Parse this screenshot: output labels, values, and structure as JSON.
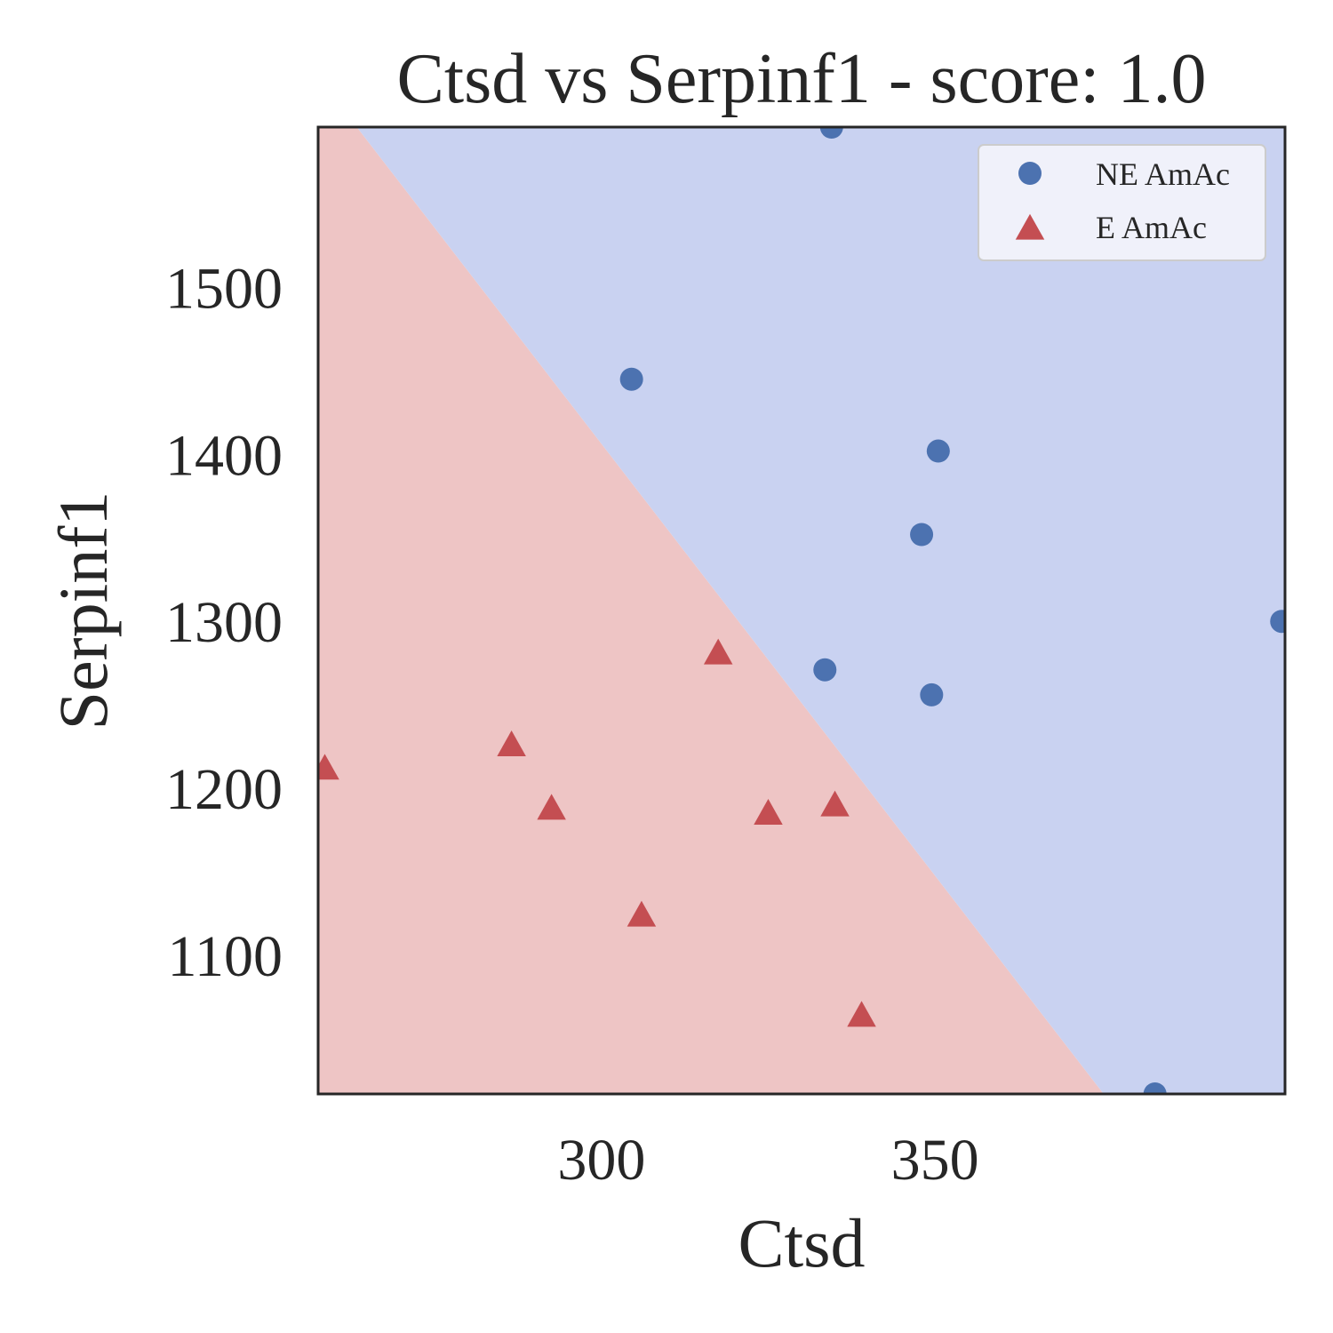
{
  "chart_data": {
    "type": "scatter",
    "title": "Ctsd vs Serpinf1 - score: 1.0",
    "xlabel": "Ctsd",
    "ylabel": "Serpinf1",
    "xlim": [
      257.5,
      402.5
    ],
    "ylim": [
      1017,
      1596
    ],
    "xticks": [
      300,
      350
    ],
    "yticks": [
      1100,
      1200,
      1300,
      1400,
      1500
    ],
    "grid": false,
    "legend_position": "top-right",
    "decision_boundary": {
      "points": [
        [
          263.3,
          1596
        ],
        [
          375.3,
          1017
        ]
      ],
      "region_colors": {
        "NE AmAc": "#c9d2f1",
        "E AmAc": "#eec5c5"
      }
    },
    "series": [
      {
        "name": "NE AmAc",
        "marker": "circle",
        "color": "#4c72b0",
        "points": [
          [
            334.5,
            1596
          ],
          [
            304.5,
            1445
          ],
          [
            350.5,
            1402
          ],
          [
            348.0,
            1352
          ],
          [
            402.0,
            1300
          ],
          [
            333.5,
            1271
          ],
          [
            349.5,
            1256
          ],
          [
            383.0,
            1017
          ]
        ]
      },
      {
        "name": "E AmAc",
        "marker": "triangle",
        "color": "#c44e52",
        "points": [
          [
            258.5,
            1212
          ],
          [
            286.5,
            1226
          ],
          [
            292.5,
            1188
          ],
          [
            317.5,
            1281
          ],
          [
            325.0,
            1185
          ],
          [
            335.0,
            1190
          ],
          [
            306.0,
            1124
          ],
          [
            339.0,
            1064
          ]
        ]
      }
    ]
  }
}
